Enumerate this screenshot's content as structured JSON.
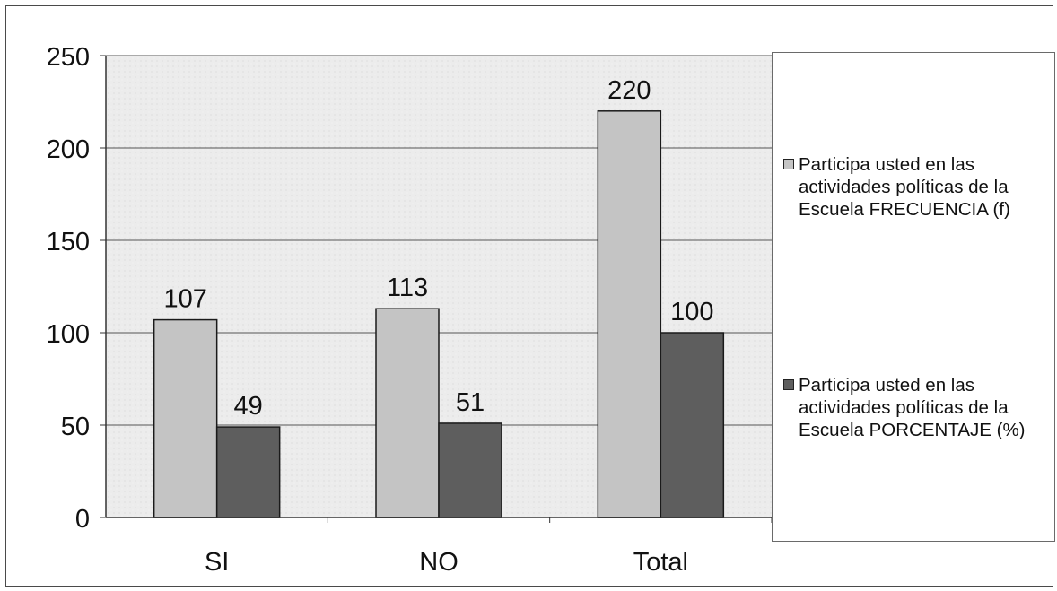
{
  "chart_data": {
    "type": "bar",
    "categories": [
      "SI",
      "NO",
      "Total"
    ],
    "series": [
      {
        "name": "Participa usted en las actividades políticas de la Escuela  FRECUENCIA (f)",
        "values": [
          107,
          113,
          220
        ],
        "color": "#c4c4c4"
      },
      {
        "name": "Participa usted en las actividades políticas de la Escuela  PORCENTAJE (%)",
        "values": [
          49,
          51,
          100
        ],
        "color": "#5e5e5e"
      }
    ],
    "yticks": [
      0,
      50,
      100,
      150,
      200,
      250
    ],
    "ylim": [
      0,
      250
    ],
    "grid": true,
    "legend_position": "right",
    "data_labels": true,
    "plot_background": "#ececec"
  }
}
